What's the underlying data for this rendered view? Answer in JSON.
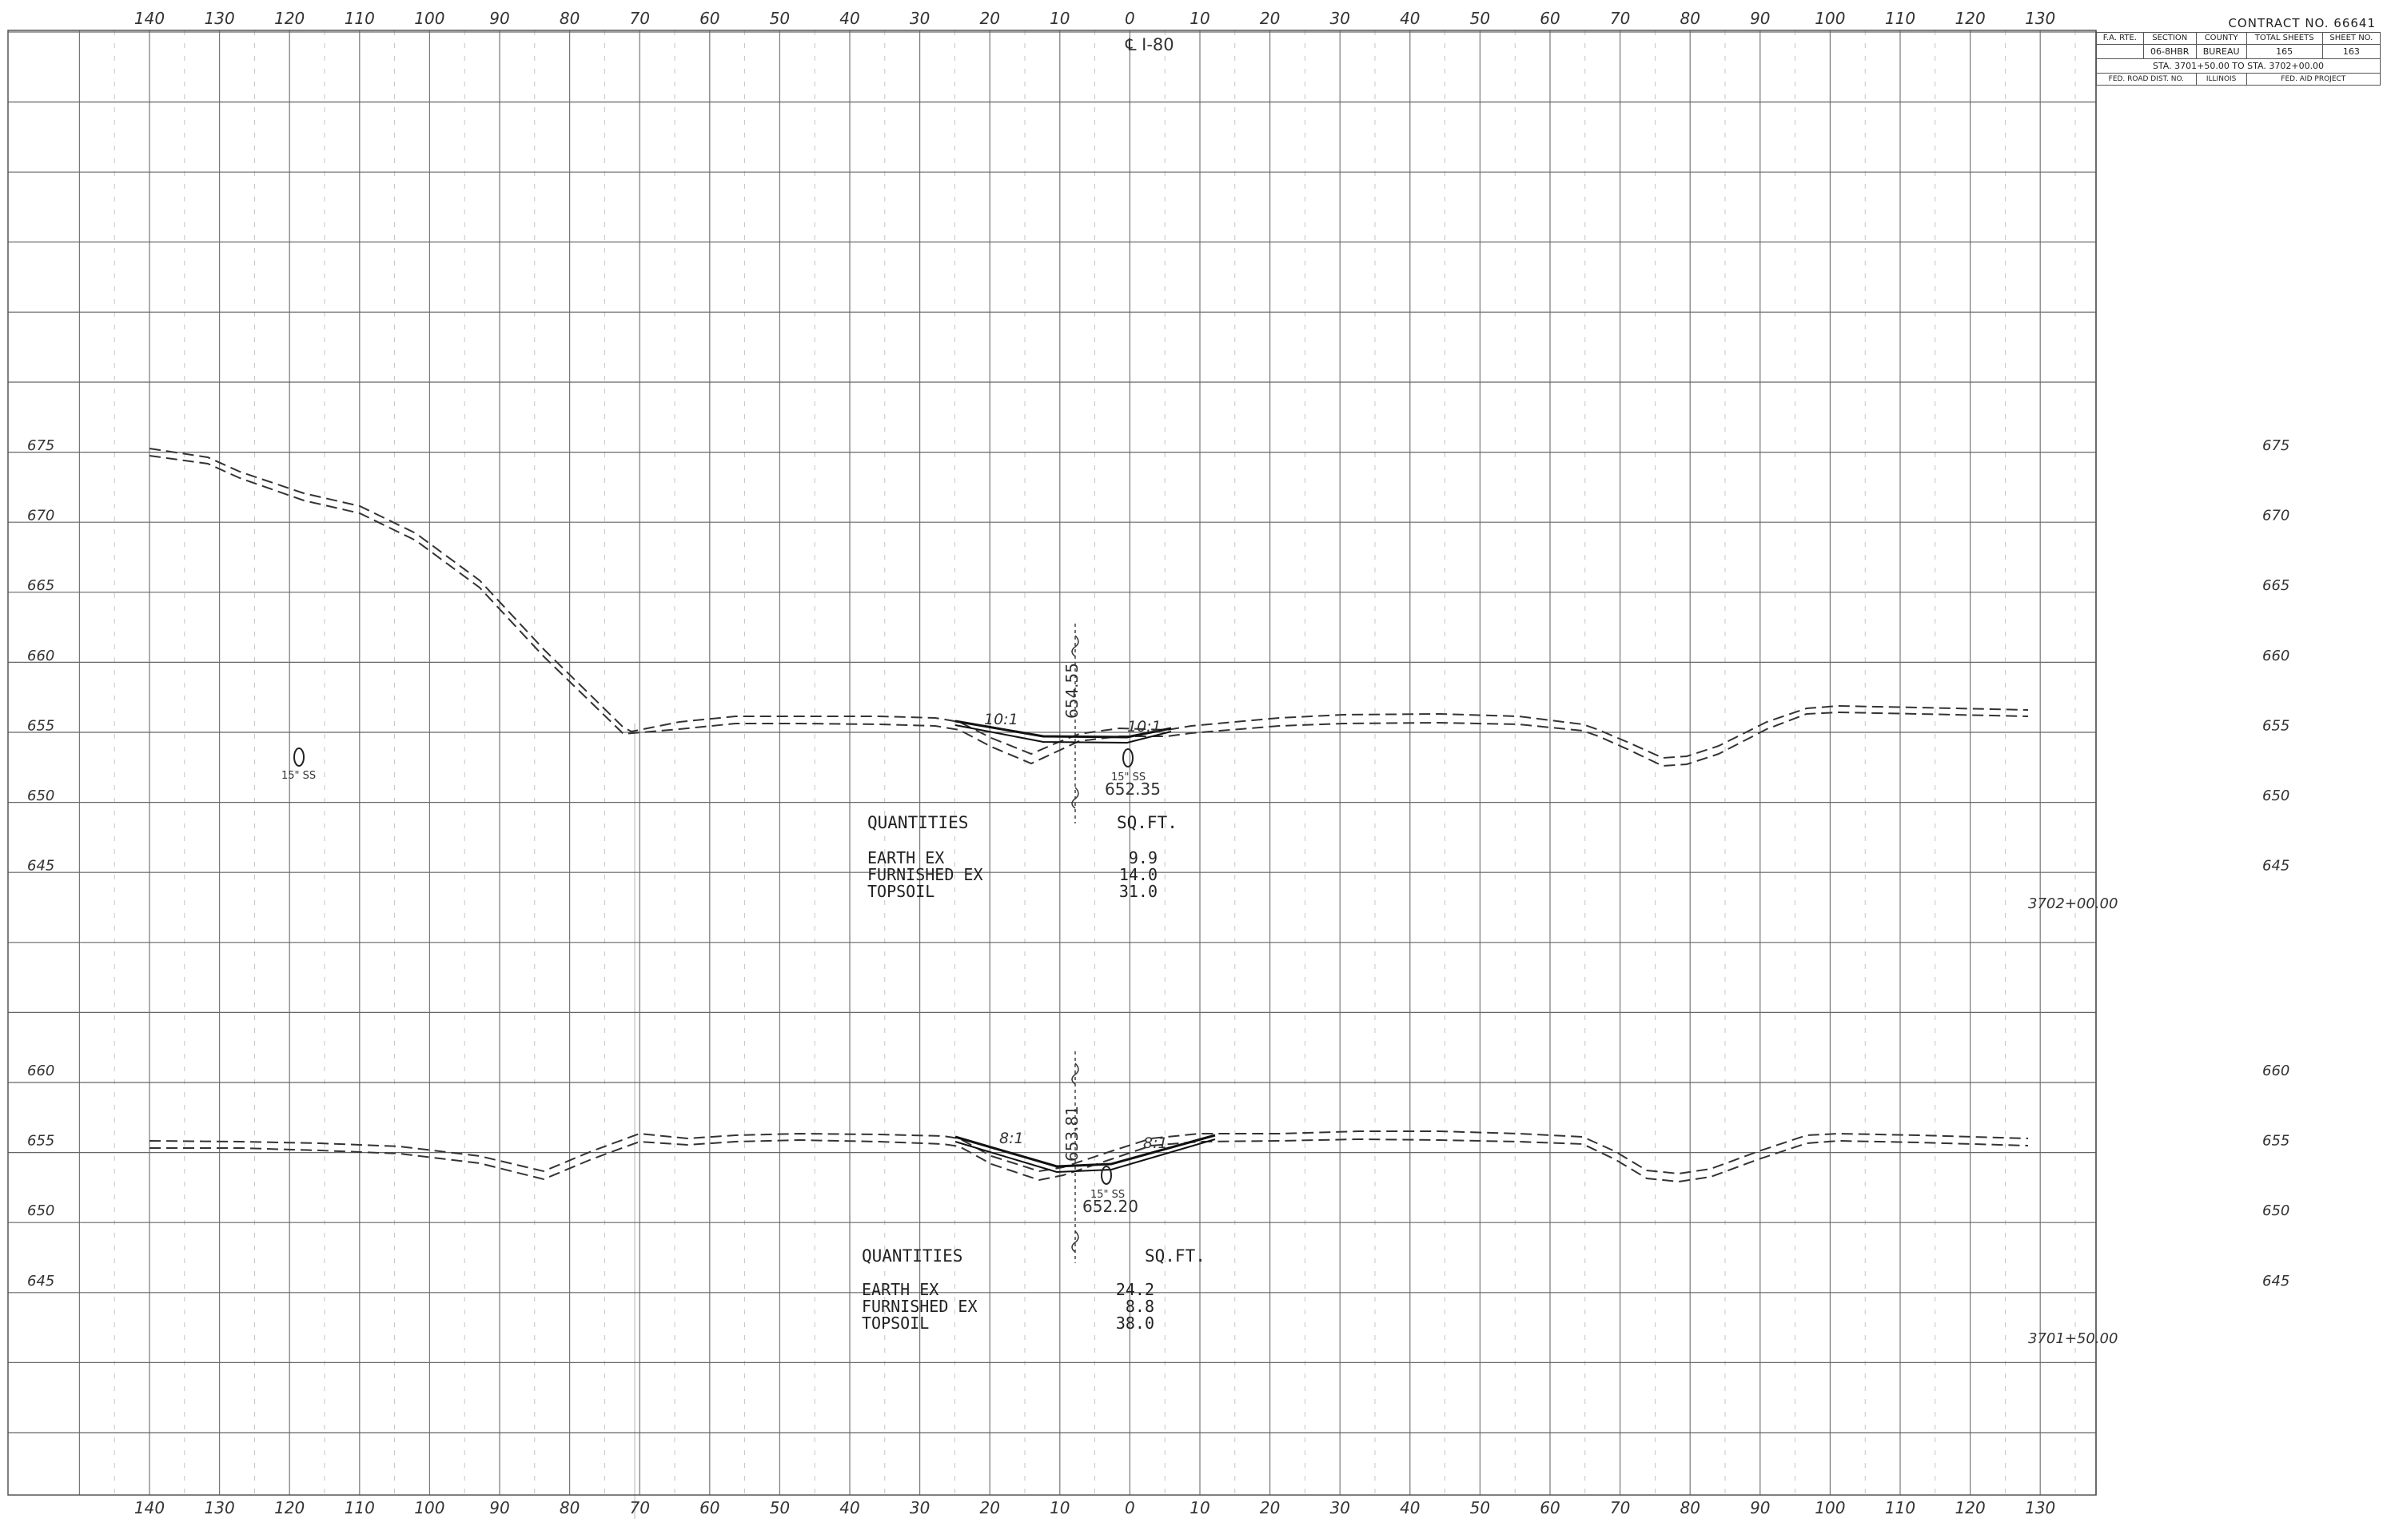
{
  "centerline_label": "℄ I-80",
  "offsets_top": [
    "140",
    "130",
    "120",
    "110",
    "100",
    "90",
    "80",
    "70",
    "60",
    "50",
    "40",
    "30",
    "20",
    "10",
    "0",
    "10",
    "20",
    "30",
    "40",
    "50",
    "60",
    "70",
    "80",
    "90",
    "100",
    "110",
    "120",
    "130"
  ],
  "offsets_bottom": [
    "140",
    "130",
    "120",
    "110",
    "100",
    "90",
    "80",
    "70",
    "60",
    "50",
    "40",
    "30",
    "20",
    "10",
    "0",
    "10",
    "20",
    "30",
    "40",
    "50",
    "60",
    "70",
    "80",
    "90",
    "100",
    "110",
    "120",
    "130"
  ],
  "title_block": {
    "contract": "CONTRACT NO. 66641",
    "fa_rte_label": "F.A. RTE.",
    "section_label": "SECTION",
    "county_label": "COUNTY",
    "total_sheets_label": "TOTAL SHEETS",
    "sheet_no_label": "SHEET NO.",
    "fa_rte_value": "",
    "section_value": "06-8HBR",
    "county_value": "BUREAU",
    "total_sheets_value": "165",
    "sheet_no_value": "163",
    "sta_row": "STA. 3701+50.00 TO STA. 3702+00.00",
    "fed_road_dist": "FED. ROAD DIST. NO.",
    "state": "ILLINOIS",
    "fed_aid": "FED. AID PROJECT"
  },
  "sections": [
    {
      "station": "3702+00.00",
      "elevations": [
        "675",
        "670",
        "665",
        "660",
        "655",
        "650",
        "645"
      ],
      "pipe_left_label": "15\" SS",
      "pipe_center_label": "15\" SS",
      "elev_label_vertical": "654.55",
      "elev_label_pipe": "652.35",
      "slope_left": "10:1",
      "slope_right": "10:1",
      "quantities_title": "QUANTITIES",
      "units": "SQ.FT.",
      "rows": [
        {
          "item": "EARTH EX",
          "value": "9.9"
        },
        {
          "item": "FURNISHED EX",
          "value": "14.0"
        },
        {
          "item": "TOPSOIL",
          "value": "31.0"
        }
      ]
    },
    {
      "station": "3701+50.00",
      "elevations": [
        "660",
        "655",
        "650",
        "645"
      ],
      "pipe_center_label": "15\" SS",
      "elev_label_vertical": "653.81",
      "elev_label_pipe": "652.20",
      "slope_left": "8:1",
      "slope_right": "8:1",
      "quantities_title": "QUANTITIES",
      "units": "SQ.FT.",
      "rows": [
        {
          "item": "EARTH EX",
          "value": "24.2"
        },
        {
          "item": "FURNISHED EX",
          "value": "8.8"
        },
        {
          "item": "TOPSOIL",
          "value": "38.0"
        }
      ]
    }
  ]
}
